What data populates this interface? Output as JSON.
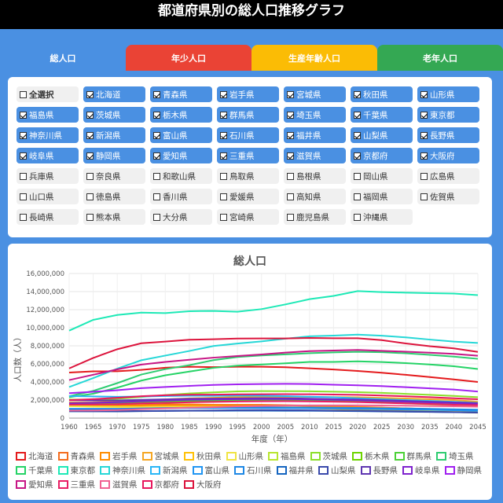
{
  "header": {
    "title": "都道府県別の総人口推移グラフ"
  },
  "tabs": [
    {
      "label": "総人口"
    },
    {
      "label": "年少人口"
    },
    {
      "label": "生産年齢人口"
    },
    {
      "label": "老年人口"
    }
  ],
  "checklist": [
    {
      "label": "全選択",
      "checked": false
    },
    {
      "label": "北海道",
      "checked": true
    },
    {
      "label": "青森県",
      "checked": true
    },
    {
      "label": "岩手県",
      "checked": true
    },
    {
      "label": "宮城県",
      "checked": true
    },
    {
      "label": "秋田県",
      "checked": true
    },
    {
      "label": "山形県",
      "checked": true
    },
    {
      "label": "福島県",
      "checked": true
    },
    {
      "label": "茨城県",
      "checked": true
    },
    {
      "label": "栃木県",
      "checked": true
    },
    {
      "label": "群馬県",
      "checked": true
    },
    {
      "label": "埼玉県",
      "checked": true
    },
    {
      "label": "千葉県",
      "checked": true
    },
    {
      "label": "東京都",
      "checked": true
    },
    {
      "label": "神奈川県",
      "checked": true
    },
    {
      "label": "新潟県",
      "checked": true
    },
    {
      "label": "富山県",
      "checked": true
    },
    {
      "label": "石川県",
      "checked": true
    },
    {
      "label": "福井県",
      "checked": true
    },
    {
      "label": "山梨県",
      "checked": true
    },
    {
      "label": "長野県",
      "checked": true
    },
    {
      "label": "岐阜県",
      "checked": true
    },
    {
      "label": "静岡県",
      "checked": true
    },
    {
      "label": "愛知県",
      "checked": true
    },
    {
      "label": "三重県",
      "checked": true
    },
    {
      "label": "滋賀県",
      "checked": true
    },
    {
      "label": "京都府",
      "checked": true
    },
    {
      "label": "大阪府",
      "checked": true
    },
    {
      "label": "兵庫県",
      "checked": false
    },
    {
      "label": "奈良県",
      "checked": false
    },
    {
      "label": "和歌山県",
      "checked": false
    },
    {
      "label": "鳥取県",
      "checked": false
    },
    {
      "label": "島根県",
      "checked": false
    },
    {
      "label": "岡山県",
      "checked": false
    },
    {
      "label": "広島県",
      "checked": false
    },
    {
      "label": "山口県",
      "checked": false
    },
    {
      "label": "徳島県",
      "checked": false
    },
    {
      "label": "香川県",
      "checked": false
    },
    {
      "label": "愛媛県",
      "checked": false
    },
    {
      "label": "高知県",
      "checked": false
    },
    {
      "label": "福岡県",
      "checked": false
    },
    {
      "label": "佐賀県",
      "checked": false
    },
    {
      "label": "長崎県",
      "checked": false
    },
    {
      "label": "熊本県",
      "checked": false
    },
    {
      "label": "大分県",
      "checked": false
    },
    {
      "label": "宮崎県",
      "checked": false
    },
    {
      "label": "鹿児島県",
      "checked": false
    },
    {
      "label": "沖縄県",
      "checked": false
    }
  ],
  "chart_data": {
    "type": "line",
    "title": "総人口",
    "xlabel": "年度（年）",
    "ylabel": "人口数（人）",
    "ylim": [
      0,
      16000000
    ],
    "yticks": [
      "0",
      "2,000,000",
      "4,000,000",
      "6,000,000",
      "8,000,000",
      "10,000,000",
      "12,000,000",
      "14,000,000",
      "16,000,000"
    ],
    "x": [
      1960,
      1965,
      1970,
      1975,
      1980,
      1985,
      1990,
      1995,
      2000,
      2005,
      2010,
      2015,
      2020,
      2025,
      2030,
      2035,
      2040,
      2045
    ],
    "series": [
      {
        "name": "北海道",
        "color": "#e41a1c",
        "values": [
          5040000,
          5170000,
          5180000,
          5340000,
          5580000,
          5680000,
          5640000,
          5690000,
          5680000,
          5630000,
          5510000,
          5380000,
          5220000,
          5020000,
          4790000,
          4540000,
          4280000,
          4000000
        ]
      },
      {
        "name": "青森県",
        "color": "#f46d1e",
        "values": [
          1430000,
          1420000,
          1430000,
          1470000,
          1520000,
          1520000,
          1480000,
          1480000,
          1480000,
          1440000,
          1370000,
          1310000,
          1240000,
          1160000,
          1080000,
          1000000,
          920000,
          820000
        ]
      },
      {
        "name": "岩手県",
        "color": "#ff8c00",
        "values": [
          1450000,
          1410000,
          1370000,
          1390000,
          1420000,
          1430000,
          1420000,
          1420000,
          1420000,
          1390000,
          1330000,
          1280000,
          1210000,
          1140000,
          1070000,
          1000000,
          930000,
          880000
        ]
      },
      {
        "name": "宮城県",
        "color": "#f5a623",
        "values": [
          1740000,
          1750000,
          1820000,
          1960000,
          2080000,
          2180000,
          2250000,
          2330000,
          2370000,
          2360000,
          2350000,
          2330000,
          2300000,
          2240000,
          2170000,
          2090000,
          2000000,
          1810000
        ]
      },
      {
        "name": "秋田県",
        "color": "#ffc107",
        "values": [
          1340000,
          1280000,
          1240000,
          1230000,
          1260000,
          1250000,
          1230000,
          1210000,
          1190000,
          1150000,
          1090000,
          1020000,
          960000,
          880000,
          810000,
          740000,
          670000,
          600000
        ]
      },
      {
        "name": "山形県",
        "color": "#f0e442",
        "values": [
          1320000,
          1260000,
          1230000,
          1220000,
          1250000,
          1260000,
          1260000,
          1260000,
          1240000,
          1220000,
          1170000,
          1120000,
          1070000,
          1010000,
          950000,
          890000,
          840000,
          770000
        ]
      },
      {
        "name": "福島県",
        "color": "#b8e62e",
        "values": [
          2050000,
          1980000,
          1950000,
          1970000,
          2040000,
          2080000,
          2100000,
          2130000,
          2130000,
          2090000,
          2030000,
          1910000,
          1830000,
          1730000,
          1630000,
          1530000,
          1430000,
          1320000
        ]
      },
      {
        "name": "茨城県",
        "color": "#8bdf2b",
        "values": [
          2050000,
          2060000,
          2140000,
          2340000,
          2560000,
          2730000,
          2850000,
          2960000,
          2990000,
          2980000,
          2970000,
          2920000,
          2870000,
          2790000,
          2690000,
          2580000,
          2460000,
          2320000
        ]
      },
      {
        "name": "栃木県",
        "color": "#6dd400",
        "values": [
          1510000,
          1520000,
          1580000,
          1700000,
          1790000,
          1870000,
          1940000,
          1980000,
          2000000,
          2020000,
          2010000,
          1970000,
          1930000,
          1870000,
          1800000,
          1720000,
          1640000,
          1560000
        ]
      },
      {
        "name": "群馬県",
        "color": "#4cd137",
        "values": [
          1580000,
          1610000,
          1660000,
          1760000,
          1850000,
          1920000,
          1970000,
          2000000,
          2020000,
          2020000,
          2010000,
          1970000,
          1940000,
          1880000,
          1810000,
          1730000,
          1650000,
          1550000
        ]
      },
      {
        "name": "埼玉県",
        "color": "#2ecc71",
        "values": [
          2430000,
          3010000,
          3870000,
          4820000,
          5420000,
          5860000,
          6410000,
          6760000,
          6940000,
          7050000,
          7190000,
          7270000,
          7340000,
          7290000,
          7170000,
          7000000,
          6800000,
          6560000
        ]
      },
      {
        "name": "千葉県",
        "color": "#25d366",
        "values": [
          2310000,
          2700000,
          3370000,
          4150000,
          4740000,
          5150000,
          5560000,
          5800000,
          5930000,
          6060000,
          6220000,
          6220000,
          6280000,
          6210000,
          6090000,
          5930000,
          5740000,
          5430000
        ]
      },
      {
        "name": "東京都",
        "color": "#1de9b6",
        "values": [
          9680000,
          10870000,
          11410000,
          11670000,
          11620000,
          11830000,
          11860000,
          11770000,
          12060000,
          12580000,
          13160000,
          13520000,
          14050000,
          13950000,
          13880000,
          13830000,
          13780000,
          13610000
        ]
      },
      {
        "name": "神奈川県",
        "color": "#26d7d7",
        "values": [
          3440000,
          4430000,
          5470000,
          6400000,
          6920000,
          7430000,
          7980000,
          8250000,
          8490000,
          8790000,
          9050000,
          9130000,
          9240000,
          9120000,
          8930000,
          8690000,
          8470000,
          8310000
        ]
      },
      {
        "name": "新潟県",
        "color": "#29b6f6",
        "values": [
          2440000,
          2400000,
          2360000,
          2390000,
          2450000,
          2480000,
          2470000,
          2490000,
          2480000,
          2430000,
          2370000,
          2300000,
          2200000,
          2100000,
          2000000,
          1900000,
          1800000,
          1690000
        ]
      },
      {
        "name": "富山県",
        "color": "#2196f3",
        "values": [
          1030000,
          1030000,
          1030000,
          1070000,
          1100000,
          1120000,
          1120000,
          1120000,
          1120000,
          1110000,
          1090000,
          1070000,
          1030000,
          990000,
          950000,
          910000,
          870000,
          820000
        ]
      },
      {
        "name": "石川県",
        "color": "#1e88e5",
        "values": [
          970000,
          980000,
          1000000,
          1070000,
          1120000,
          1150000,
          1160000,
          1180000,
          1180000,
          1170000,
          1170000,
          1150000,
          1130000,
          1090000,
          1060000,
          1020000,
          980000,
          930000
        ]
      },
      {
        "name": "福井県",
        "color": "#1565c0",
        "values": [
          750000,
          750000,
          740000,
          770000,
          790000,
          820000,
          820000,
          830000,
          830000,
          820000,
          810000,
          790000,
          770000,
          740000,
          710000,
          680000,
          650000,
          620000
        ]
      },
      {
        "name": "山梨県",
        "color": "#3949ab",
        "values": [
          780000,
          760000,
          760000,
          780000,
          800000,
          830000,
          850000,
          880000,
          890000,
          880000,
          860000,
          830000,
          810000,
          770000,
          740000,
          700000,
          660000,
          620000
        ]
      },
      {
        "name": "長野県",
        "color": "#5e35b1",
        "values": [
          1980000,
          1960000,
          1960000,
          2020000,
          2080000,
          2140000,
          2160000,
          2190000,
          2210000,
          2200000,
          2150000,
          2100000,
          2050000,
          1980000,
          1900000,
          1820000,
          1740000,
          1650000
        ]
      },
      {
        "name": "岐阜県",
        "color": "#7e22ce",
        "values": [
          1640000,
          1700000,
          1760000,
          1870000,
          1960000,
          2030000,
          2070000,
          2100000,
          2110000,
          2110000,
          2080000,
          2030000,
          1980000,
          1900000,
          1820000,
          1740000,
          1660000,
          1570000
        ]
      },
      {
        "name": "静岡県",
        "color": "#a020f0",
        "values": [
          2760000,
          2910000,
          3090000,
          3310000,
          3450000,
          3570000,
          3670000,
          3740000,
          3770000,
          3790000,
          3770000,
          3700000,
          3630000,
          3540000,
          3420000,
          3290000,
          3160000,
          2940000
        ]
      },
      {
        "name": "愛知県",
        "color": "#c71585",
        "values": [
          4210000,
          4800000,
          5390000,
          5920000,
          6220000,
          6460000,
          6690000,
          6870000,
          7040000,
          7250000,
          7410000,
          7480000,
          7540000,
          7450000,
          7350000,
          7240000,
          7110000,
          6900000
        ]
      },
      {
        "name": "三重県",
        "color": "#e91e63",
        "values": [
          1490000,
          1510000,
          1540000,
          1630000,
          1690000,
          1750000,
          1790000,
          1840000,
          1860000,
          1870000,
          1850000,
          1820000,
          1770000,
          1700000,
          1630000,
          1560000,
          1480000,
          1430000
        ]
      },
      {
        "name": "滋賀県",
        "color": "#f06292",
        "values": [
          840000,
          850000,
          890000,
          990000,
          1080000,
          1160000,
          1220000,
          1290000,
          1340000,
          1380000,
          1410000,
          1410000,
          1410000,
          1390000,
          1370000,
          1340000,
          1300000,
          1260000
        ]
      },
      {
        "name": "京都府",
        "color": "#e8175d",
        "values": [
          1990000,
          2100000,
          2250000,
          2420000,
          2530000,
          2590000,
          2600000,
          2630000,
          2640000,
          2650000,
          2640000,
          2610000,
          2580000,
          2500000,
          2410000,
          2310000,
          2200000,
          2090000
        ]
      },
      {
        "name": "大阪府",
        "color": "#dc143c",
        "values": [
          5500000,
          6660000,
          7620000,
          8280000,
          8470000,
          8670000,
          8730000,
          8800000,
          8810000,
          8820000,
          8870000,
          8840000,
          8840000,
          8630000,
          8260000,
          7960000,
          7720000,
          7330000
        ]
      }
    ]
  }
}
